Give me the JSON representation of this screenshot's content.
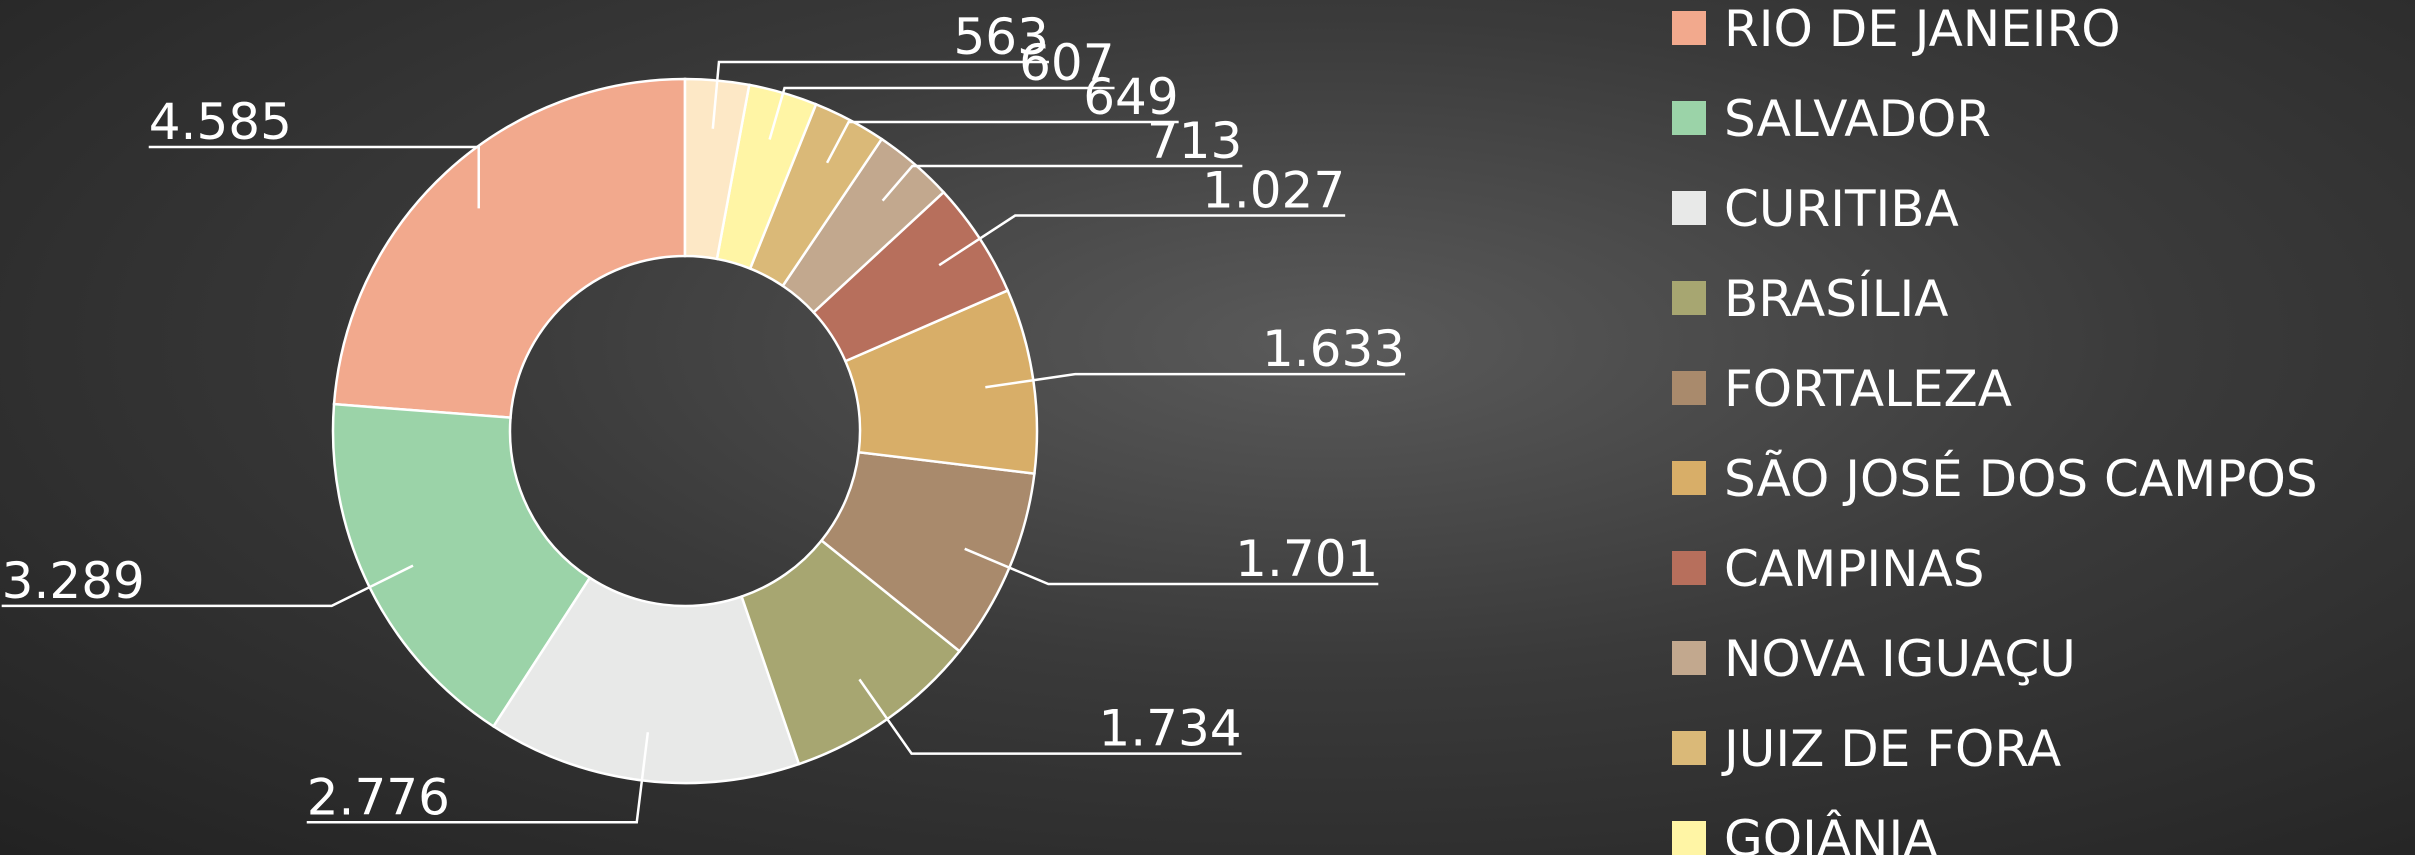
{
  "chart_data": {
    "type": "donut",
    "categories": [
      "RIO DE JANEIRO",
      "SALVADOR",
      "CURITIBA",
      "BRASÍLIA",
      "FORTALEZA",
      "SÃO JOSÉ DOS CAMPOS",
      "CAMPINAS",
      "NOVA IGUAÇU",
      "JUIZ DE FORA",
      "GOIÂNIA",
      null
    ],
    "values": [
      4585,
      3289,
      2776,
      1734,
      1701,
      1633,
      1027,
      713,
      649,
      607,
      563
    ],
    "value_labels": [
      "4.585",
      "3.289",
      "2.776",
      "1.734",
      "1.701",
      "1.633",
      "1.027",
      "713",
      "649",
      "607",
      "563"
    ],
    "colors": [
      "#f2a98d",
      "#9bd3a8",
      "#e8e9e8",
      "#a7a671",
      "#a98a6c",
      "#d8ae68",
      "#b76f5c",
      "#c2a88e",
      "#dab978",
      "#fff5a5",
      "#fde8c6"
    ],
    "legend": "right"
  }
}
